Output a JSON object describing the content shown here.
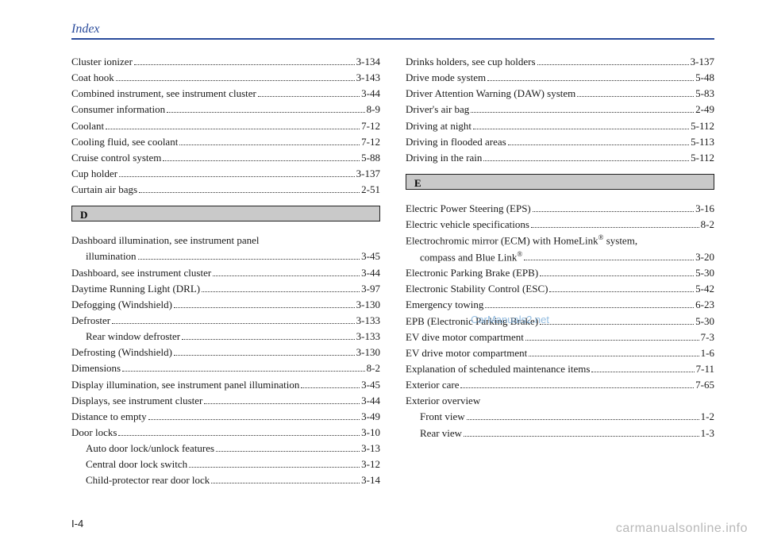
{
  "header": {
    "title": "Index"
  },
  "pageNumber": "I-4",
  "watermarks": {
    "left": "CarManuals2.net",
    "right": "carmanualsonline.info"
  },
  "columns": {
    "left": {
      "topEntries": [
        {
          "label": "Cluster ionizer",
          "page": "3-134"
        },
        {
          "label": "Coat hook",
          "page": "3-143"
        },
        {
          "label": "Combined instrument, see instrument cluster",
          "page": "3-44"
        },
        {
          "label": "Consumer information",
          "page": "8-9"
        },
        {
          "label": "Coolant",
          "page": "7-12"
        },
        {
          "label": "Cooling fluid, see coolant",
          "page": "7-12"
        },
        {
          "label": "Cruise control system",
          "page": "5-88"
        },
        {
          "label": "Cup holder",
          "page": "3-137"
        },
        {
          "label": "Curtain air bags",
          "page": "2-51"
        }
      ],
      "letter": "D",
      "dEntries": [
        {
          "label": "Dashboard illumination, see instrument panel",
          "noPage": true
        },
        {
          "label": "illumination",
          "page": "3-45",
          "sub": true
        },
        {
          "label": "Dashboard, see instrument cluster",
          "page": "3-44"
        },
        {
          "label": "Daytime Running Light (DRL)",
          "page": "3-97"
        },
        {
          "label": "Defogging (Windshield)",
          "page": "3-130"
        },
        {
          "label": "Defroster",
          "page": "3-133"
        },
        {
          "label": "Rear window defroster",
          "page": "3-133",
          "sub": true
        },
        {
          "label": "Defrosting (Windshield)",
          "page": "3-130"
        },
        {
          "label": "Dimensions",
          "page": "8-2"
        },
        {
          "label": "Display illumination, see instrument panel illumination",
          "page": "3-45"
        },
        {
          "label": "Displays, see instrument cluster",
          "page": "3-44"
        },
        {
          "label": "Distance to empty",
          "page": "3-49"
        },
        {
          "label": "Door locks",
          "page": "3-10"
        },
        {
          "label": "Auto door lock/unlock features",
          "page": "3-13",
          "sub": true
        },
        {
          "label": "Central door lock switch",
          "page": "3-12",
          "sub": true
        },
        {
          "label": "Child-protector rear door lock",
          "page": "3-14",
          "sub": true
        }
      ]
    },
    "right": {
      "topEntries": [
        {
          "label": "Drinks holders, see cup holders",
          "page": "3-137"
        },
        {
          "label": "Drive mode system",
          "page": "5-48"
        },
        {
          "label": "Driver Attention Warning (DAW) system",
          "page": "5-83"
        },
        {
          "label": "Driver's air bag",
          "page": "2-49"
        },
        {
          "label": "Driving at night",
          "page": "5-112"
        },
        {
          "label": "Driving in flooded areas",
          "page": "5-113"
        },
        {
          "label": "Driving in the rain",
          "page": "5-112"
        }
      ],
      "letter": "E",
      "eEntries": [
        {
          "label": "Electric Power Steering (EPS)",
          "page": "3-16"
        },
        {
          "label": "Electric vehicle specifications",
          "page": "8-2"
        },
        {
          "label": "Electrochromic mirror (ECM) with HomeLink<sup>®</sup> system,",
          "noPage": true,
          "html": true
        },
        {
          "label": "compass and Blue Link<sup>®</sup>",
          "page": "3-20",
          "sub": true,
          "html": true
        },
        {
          "label": "Electronic Parking Brake (EPB)",
          "page": "5-30"
        },
        {
          "label": "Electronic Stability Control (ESC)",
          "page": "5-42"
        },
        {
          "label": "Emergency towing",
          "page": "6-23"
        },
        {
          "label": "EPB (Electronic Parking Brake)",
          "page": "5-30"
        },
        {
          "label": "EV dive motor compartment",
          "page": "7-3"
        },
        {
          "label": "EV drive motor compartment",
          "page": "1-6"
        },
        {
          "label": "Explanation of scheduled maintenance items",
          "page": "7-11"
        },
        {
          "label": "Exterior care",
          "page": "7-65"
        },
        {
          "label": "Exterior overview",
          "noPage": true
        },
        {
          "label": "Front view",
          "page": "1-2",
          "sub": true
        },
        {
          "label": "Rear view",
          "page": "1-3",
          "sub": true
        }
      ]
    }
  }
}
